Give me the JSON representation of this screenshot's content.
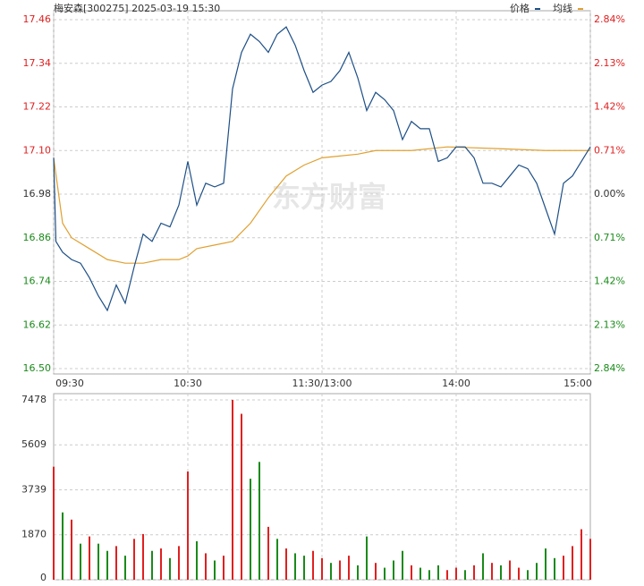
{
  "chart_data": [
    {
      "type": "line",
      "title": "梅安森[300275] 2025-03-19 15:30",
      "watermark": "东方财富",
      "xlim": [
        0,
        240
      ],
      "xticks": [
        {
          "value": 0,
          "label": "09:30"
        },
        {
          "value": 60,
          "label": "10:30"
        },
        {
          "value": 120,
          "label": "11:30/13:00"
        },
        {
          "value": 180,
          "label": "14:00"
        },
        {
          "value": 240,
          "label": "15:00"
        }
      ],
      "ylim": [
        16.5,
        17.46
      ],
      "yticks": [
        {
          "value": 16.5,
          "label": "16.50"
        },
        16.62,
        16.74,
        16.86,
        16.98,
        {
          "value": 17.1,
          "label": "17.10"
        },
        17.22,
        17.34,
        17.46
      ],
      "y2lim": [
        -2.84,
        2.84
      ],
      "y2ticks": [
        {
          "value": -2.84,
          "label": "2.84%"
        },
        {
          "value": -2.13,
          "label": "2.13%"
        },
        {
          "value": -1.42,
          "label": "1.42%"
        },
        {
          "value": -0.71,
          "label": "0.71%"
        },
        {
          "value": 0,
          "label": "0.00%"
        },
        {
          "value": 0.71,
          "label": "0.71%"
        },
        {
          "value": 1.42,
          "label": "1.42%"
        },
        {
          "value": 2.13,
          "label": "2.13%"
        },
        {
          "value": 2.84,
          "label": "2.84%"
        }
      ],
      "up_color": "#e02020",
      "down_color": "#1a8a1a",
      "grid": true,
      "series": [
        {
          "name": "价格",
          "color": "#1d4f86",
          "x": [
            0,
            1,
            4,
            8,
            12,
            16,
            20,
            24,
            28,
            32,
            36,
            40,
            44,
            48,
            52,
            56,
            60,
            64,
            68,
            72,
            76,
            80,
            84,
            88,
            92,
            96,
            100,
            104,
            108,
            112,
            116,
            120,
            124,
            128,
            132,
            136,
            140,
            144,
            148,
            152,
            156,
            160,
            164,
            168,
            172,
            176,
            180,
            184,
            188,
            192,
            196,
            200,
            204,
            208,
            212,
            216,
            220,
            224,
            228,
            232,
            236,
            240
          ],
          "values": [
            17.08,
            16.85,
            16.82,
            16.8,
            16.79,
            16.75,
            16.7,
            16.66,
            16.73,
            16.68,
            16.78,
            16.87,
            16.85,
            16.9,
            16.89,
            16.95,
            17.07,
            16.95,
            17.01,
            17.0,
            17.01,
            17.27,
            17.37,
            17.42,
            17.4,
            17.37,
            17.42,
            17.44,
            17.39,
            17.32,
            17.26,
            17.28,
            17.29,
            17.32,
            17.37,
            17.3,
            17.21,
            17.26,
            17.24,
            17.21,
            17.13,
            17.18,
            17.16,
            17.16,
            17.07,
            17.08,
            17.11,
            17.11,
            17.08,
            17.01,
            17.01,
            17.0,
            17.03,
            17.06,
            17.05,
            17.01,
            16.94,
            16.87,
            17.01,
            17.03,
            17.07,
            17.11
          ]
        },
        {
          "name": "均线",
          "color": "#e0a030",
          "x": [
            0,
            4,
            8,
            16,
            24,
            32,
            40,
            48,
            56,
            60,
            64,
            72,
            80,
            88,
            96,
            104,
            112,
            120,
            128,
            136,
            144,
            160,
            176,
            200,
            220,
            240
          ],
          "values": [
            17.08,
            16.9,
            16.86,
            16.83,
            16.8,
            16.79,
            16.79,
            16.8,
            16.8,
            16.81,
            16.83,
            16.84,
            16.85,
            16.9,
            16.97,
            17.03,
            17.06,
            17.08,
            17.085,
            17.09,
            17.1,
            17.1,
            17.11,
            17.105,
            17.1,
            17.1
          ]
        }
      ]
    },
    {
      "type": "bar",
      "xlim": [
        0,
        240
      ],
      "xticks": [
        60,
        120,
        180
      ],
      "ylim": [
        0,
        7478
      ],
      "yticks": [
        0,
        1870,
        3739,
        5609,
        7478
      ],
      "grid": true,
      "series": [
        {
          "x": [
            0,
            4,
            8,
            12,
            16,
            20,
            24,
            28,
            32,
            36,
            40,
            44,
            48,
            52,
            56,
            60,
            64,
            68,
            72,
            76,
            80,
            84,
            88,
            92,
            96,
            100,
            104,
            108,
            112,
            116,
            120,
            124,
            128,
            132,
            136,
            140,
            144,
            148,
            152,
            156,
            160,
            164,
            168,
            172,
            176,
            180,
            184,
            188,
            192,
            196,
            200,
            204,
            208,
            212,
            216,
            220,
            224,
            228,
            232,
            236,
            240
          ],
          "values": [
            4700,
            2800,
            2500,
            1500,
            1800,
            1500,
            1200,
            1400,
            1000,
            1700,
            1900,
            1200,
            1300,
            900,
            1400,
            4500,
            1600,
            1100,
            800,
            1000,
            7478,
            6900,
            4200,
            4900,
            2200,
            1700,
            1300,
            1100,
            1000,
            1200,
            900,
            700,
            800,
            1000,
            600,
            1800,
            700,
            500,
            800,
            1200,
            600,
            500,
            400,
            600,
            400,
            500,
            400,
            600,
            1100,
            700,
            600,
            800,
            500,
            400,
            700,
            1300,
            900,
            1000,
            1400,
            2100,
            1700
          ],
          "colors": [
            "#e02020",
            "#1a8a1a",
            "#e02020",
            "#1a8a1a",
            "#e02020",
            "#1a8a1a",
            "#1a8a1a",
            "#e02020",
            "#1a8a1a",
            "#e02020",
            "#e02020",
            "#1a8a1a",
            "#e02020",
            "#1a8a1a",
            "#e02020",
            "#e02020",
            "#1a8a1a",
            "#e02020",
            "#1a8a1a",
            "#e02020",
            "#e02020",
            "#e02020",
            "#1a8a1a",
            "#1a8a1a",
            "#e02020",
            "#1a8a1a",
            "#e02020",
            "#1a8a1a",
            "#1a8a1a",
            "#e02020",
            "#e02020",
            "#1a8a1a",
            "#e02020",
            "#e02020",
            "#1a8a1a",
            "#1a8a1a",
            "#e02020",
            "#1a8a1a",
            "#1a8a1a",
            "#1a8a1a",
            "#e02020",
            "#1a8a1a",
            "#1a8a1a",
            "#1a8a1a",
            "#e02020",
            "#e02020",
            "#1a8a1a",
            "#e02020",
            "#1a8a1a",
            "#e02020",
            "#1a8a1a",
            "#e02020",
            "#e02020",
            "#1a8a1a",
            "#1a8a1a",
            "#1a8a1a",
            "#1a8a1a",
            "#e02020",
            "#e02020",
            "#e02020",
            "#e02020"
          ]
        }
      ]
    }
  ]
}
